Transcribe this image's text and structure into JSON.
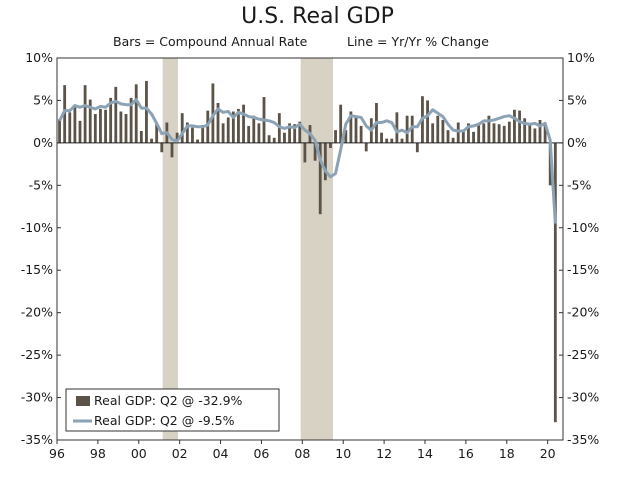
{
  "chart_data": {
    "type": "bar",
    "title": "U.S. Real GDP",
    "subtitle_left": "Bars = Compound Annual Rate",
    "subtitle_right": "Line = Yr/Yr % Change",
    "ylim": [
      -35,
      10
    ],
    "yticks": [
      10,
      5,
      0,
      -5,
      -10,
      -15,
      -20,
      -25,
      -30,
      -35
    ],
    "ytick_labels": [
      "10%",
      "5%",
      "0%",
      "-5%",
      "-10%",
      "-15%",
      "-20%",
      "-25%",
      "-30%",
      "-35%"
    ],
    "x_range": [
      1996,
      2020.75
    ],
    "xticks": [
      1996,
      1998,
      2000,
      2002,
      2004,
      2006,
      2008,
      2010,
      2012,
      2014,
      2016,
      2018,
      2020
    ],
    "xtick_labels": [
      "96",
      "98",
      "00",
      "02",
      "04",
      "06",
      "08",
      "10",
      "12",
      "14",
      "16",
      "18",
      "20"
    ],
    "recessions": [
      [
        2001.17,
        2001.92
      ],
      [
        2007.92,
        2009.5
      ]
    ],
    "colors": {
      "bars": "#5b5248",
      "line": "#8ba3b5",
      "recession": "#d8d2c5"
    },
    "grid": false,
    "legend_placement": "bottom-left",
    "series": [
      {
        "name": "Real GDP: Q2 @ -32.9%",
        "kind": "bar",
        "start": 1996.0,
        "step": 0.25,
        "values": [
          2.8,
          6.8,
          3.6,
          4.4,
          2.6,
          6.8,
          5.1,
          3.4,
          4.0,
          3.9,
          5.3,
          6.6,
          3.7,
          3.4,
          5.3,
          6.9,
          1.4,
          7.3,
          0.5,
          2.4,
          -1.1,
          2.4,
          -1.7,
          1.2,
          3.5,
          2.4,
          1.8,
          0.4,
          2.1,
          3.8,
          7.0,
          4.7,
          2.3,
          3.0,
          3.7,
          4.0,
          4.5,
          2.0,
          3.2,
          2.3,
          5.4,
          0.9,
          0.6,
          3.5,
          1.2,
          2.3,
          2.2,
          2.5,
          -2.3,
          2.1,
          -2.1,
          -8.4,
          -4.4,
          -0.6,
          1.5,
          4.5,
          1.5,
          3.7,
          3.0,
          2.0,
          -1.0,
          2.9,
          4.7,
          1.2,
          0.5,
          0.5,
          3.6,
          0.5,
          3.2,
          3.2,
          -1.1,
          5.5,
          5.0,
          2.3,
          3.2,
          2.7,
          1.5,
          0.6,
          2.4,
          1.5,
          2.3,
          1.3,
          2.2,
          2.3,
          3.2,
          2.3,
          2.2,
          2.0,
          2.5,
          3.9,
          3.8,
          2.9,
          2.3,
          1.7,
          2.7,
          2.4,
          -5.0,
          -32.9
        ]
      },
      {
        "name": "Real GDP: Q2 @ -9.5%",
        "kind": "line",
        "start": 1996.0,
        "step": 0.25,
        "values": [
          2.6,
          3.8,
          3.8,
          4.4,
          4.2,
          4.4,
          4.2,
          4.0,
          4.3,
          4.2,
          4.7,
          4.9,
          4.6,
          4.5,
          4.5,
          5.1,
          4.1,
          4.1,
          3.4,
          2.3,
          1.1,
          1.2,
          0.4,
          0.2,
          1.1,
          2.0,
          2.0,
          1.9,
          1.9,
          2.1,
          3.2,
          4.0,
          3.6,
          3.7,
          3.0,
          3.6,
          3.4,
          3.1,
          3.0,
          2.8,
          2.7,
          2.6,
          2.4,
          1.9,
          1.7,
          1.9,
          1.8,
          2.2,
          1.5,
          1.1,
          0.3,
          -2.0,
          -3.3,
          -4.0,
          -3.6,
          -0.8,
          2.2,
          3.2,
          3.1,
          3.0,
          2.0,
          1.5,
          2.4,
          2.4,
          2.6,
          2.4,
          1.3,
          1.5,
          1.2,
          1.9,
          1.9,
          2.9,
          3.2,
          3.9,
          3.5,
          3.1,
          2.2,
          1.5,
          1.4,
          1.4,
          1.9,
          2.0,
          2.2,
          2.6,
          2.6,
          2.7,
          2.9,
          3.1,
          3.2,
          2.9,
          2.5,
          2.3,
          2.2,
          2.3,
          2.0,
          2.3,
          0.3,
          -9.5
        ]
      }
    ]
  }
}
